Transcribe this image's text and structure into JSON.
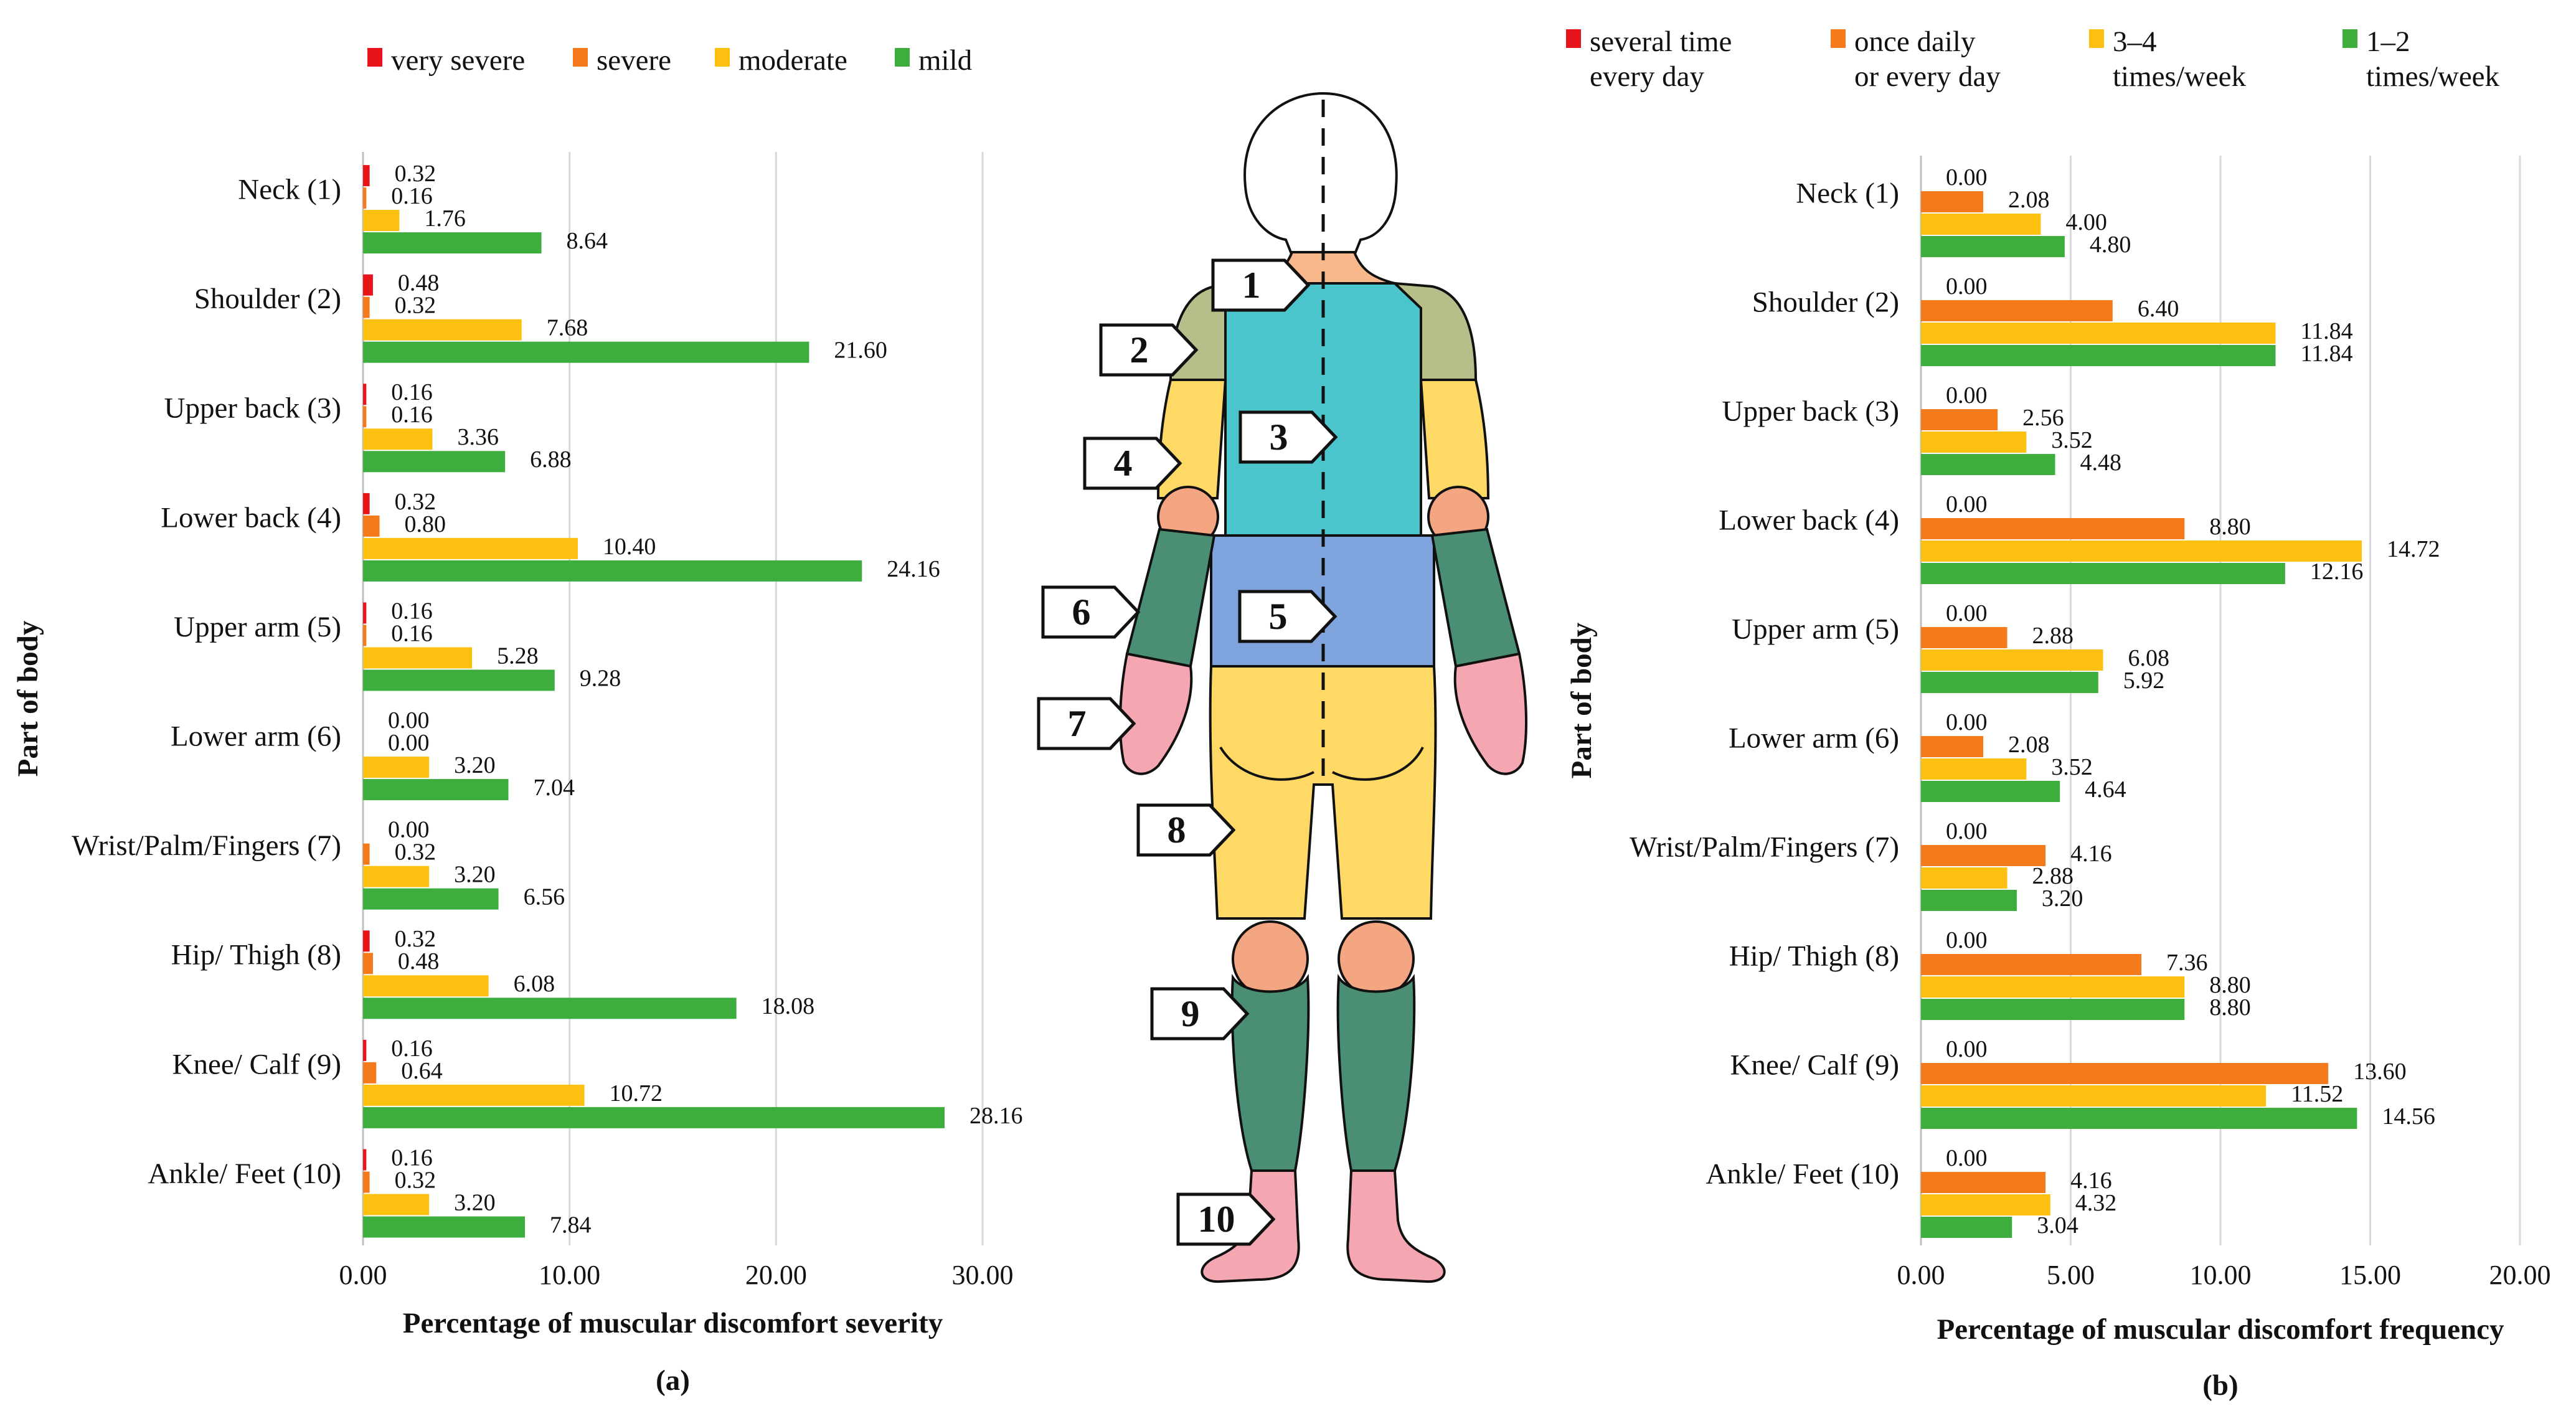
{
  "chart_data": [
    {
      "type": "bar",
      "orientation": "horizontal",
      "panel": "(a)",
      "xlabel": "Percentage of muscular discomfort severity",
      "ylabel": "Part of body",
      "xlim": [
        0,
        30
      ],
      "xticks": [
        "0.00",
        "10.00",
        "20.00",
        "30.00"
      ],
      "grid": true,
      "legend_position": "top",
      "categories": [
        "Neck (1)",
        "Shoulder (2)",
        "Upper back (3)",
        "Lower back (4)",
        "Upper arm (5)",
        "Lower arm (6)",
        "Wrist/Palm/Fingers (7)",
        "Hip/ Thigh (8)",
        "Knee/ Calf (9)",
        "Ankle/ Feet (10)"
      ],
      "series": [
        {
          "name": "very severe",
          "color": "#e8141c",
          "values": [
            0.32,
            0.48,
            0.16,
            0.32,
            0.16,
            0.0,
            0.0,
            0.32,
            0.16,
            0.16
          ]
        },
        {
          "name": "severe",
          "color": "#f57a1c",
          "values": [
            0.16,
            0.32,
            0.16,
            0.8,
            0.16,
            0.0,
            0.32,
            0.48,
            0.64,
            0.32
          ]
        },
        {
          "name": "moderate",
          "color": "#fcc010",
          "values": [
            1.76,
            7.68,
            3.36,
            10.4,
            5.28,
            3.2,
            3.2,
            6.08,
            10.72,
            3.2
          ]
        },
        {
          "name": "mild",
          "color": "#3dae3d",
          "values": [
            8.64,
            21.6,
            6.88,
            24.16,
            9.28,
            7.04,
            6.56,
            18.08,
            28.16,
            7.84
          ]
        }
      ]
    },
    {
      "type": "bar",
      "orientation": "horizontal",
      "panel": "(b)",
      "xlabel": "Percentage of muscular discomfort frequency",
      "ylabel": "Part of body",
      "xlim": [
        0,
        20
      ],
      "xticks": [
        "0.00",
        "5.00",
        "10.00",
        "15.00",
        "20.00"
      ],
      "grid": true,
      "legend_position": "top",
      "categories": [
        "Neck (1)",
        "Shoulder (2)",
        "Upper back (3)",
        "Lower back (4)",
        "Upper arm (5)",
        "Lower arm (6)",
        "Wrist/Palm/Fingers (7)",
        "Hip/ Thigh (8)",
        "Knee/ Calf (9)",
        "Ankle/ Feet (10)"
      ],
      "series": [
        {
          "name": [
            "several time",
            "every day"
          ],
          "color": "#e8141c",
          "values": [
            0.0,
            0.0,
            0.0,
            0.0,
            0.0,
            0.0,
            0.0,
            0.0,
            0.0,
            0.0
          ]
        },
        {
          "name": [
            "once daily",
            "or every day"
          ],
          "color": "#f57a1c",
          "values": [
            2.08,
            6.4,
            2.56,
            8.8,
            2.88,
            2.08,
            4.16,
            7.36,
            13.6,
            4.16
          ]
        },
        {
          "name": [
            "3–4",
            "times/week"
          ],
          "color": "#fcc010",
          "values": [
            4.0,
            11.84,
            3.52,
            14.72,
            6.08,
            3.52,
            2.88,
            8.8,
            11.52,
            4.32
          ]
        },
        {
          "name": [
            "1–2",
            "times/week"
          ],
          "color": "#3dae3d",
          "values": [
            4.8,
            11.84,
            4.48,
            12.16,
            5.92,
            4.64,
            3.2,
            8.8,
            14.56,
            3.04
          ]
        }
      ]
    }
  ],
  "figure": {
    "region_numbers": [
      "1",
      "2",
      "3",
      "4",
      "5",
      "6",
      "7",
      "8",
      "9",
      "10"
    ]
  }
}
